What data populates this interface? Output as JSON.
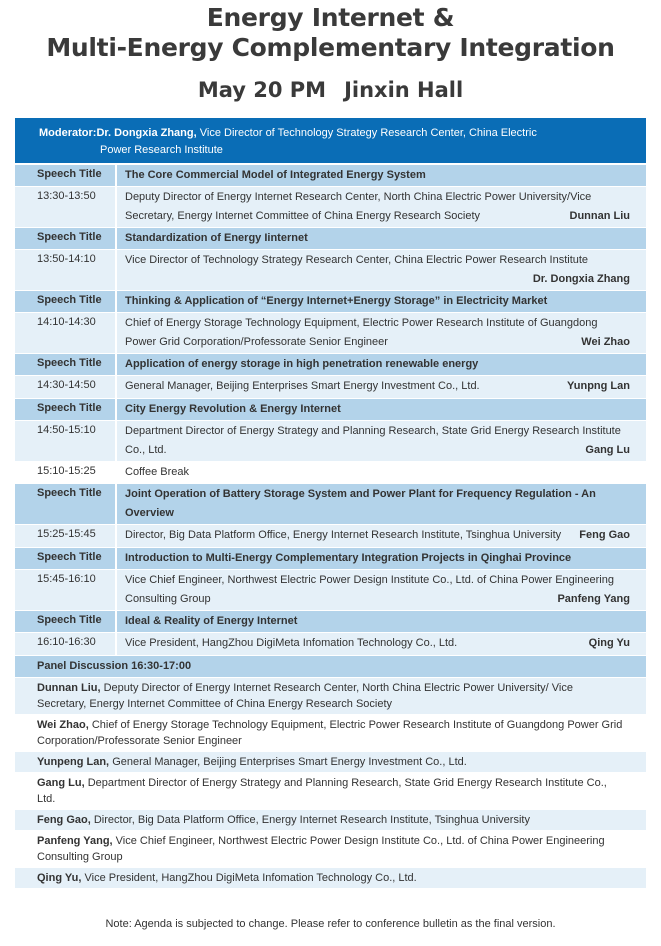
{
  "header": {
    "title_line1": "Energy Internet &",
    "title_line2": "Multi-Energy Complementary Integration",
    "date": "May 20 PM",
    "venue": "Jinxin Hall"
  },
  "moderator": {
    "label": "Moderator:Dr. Dongxia Zhang,",
    "desc_line1": "Vice Director of Technology Strategy Research Center, China Electric",
    "desc_line2": "Power Research Institute"
  },
  "colors": {
    "header_blue": "#0a6db6",
    "title_row": "#b3d3ea",
    "detail_row": "#e5f0f8"
  },
  "speech_label": "Speech Title",
  "agenda": [
    {
      "title": "The Core Commercial Model of Integrated Energy System",
      "time": "13:30-13:50",
      "desc": "Deputy Director of Energy Internet Research Center, North China Electric Power University/Vice Secretary, Energy Internet Committee of China Energy Research Society",
      "speaker": "Dunnan Liu"
    },
    {
      "title": "Standardization of Energy Iinternet",
      "time": "13:50-14:10",
      "desc": "Vice Director of Technology Strategy Research Center, China Electric Power Research Institute",
      "speaker": "Dr. Dongxia Zhang"
    },
    {
      "title": "Thinking & Application of  “Energy Internet+Energy Storage”  in Electricity Market",
      "time": "14:10-14:30",
      "desc": "Chief of Energy Storage Technology Equipment, Electric Power Research Institute of Guangdong Power Grid Corporation/Professorate Senior Engineer",
      "speaker": "Wei Zhao"
    },
    {
      "title": "Application of energy storage in high penetration renewable energy",
      "time": "14:30-14:50",
      "desc": "General Manager, Beijing Enterprises Smart Energy  Investment Co., Ltd.",
      "speaker": "Yunpng Lan"
    },
    {
      "title": "City Energy Revolution & Energy Internet",
      "time": "14:50-15:10",
      "desc": "Department Director of Energy Strategy and Planning Research, State Grid Energy Research Institute Co., Ltd.",
      "speaker": "Gang Lu"
    },
    {
      "break": true,
      "time": "15:10-15:25",
      "desc": "Coffee Break"
    },
    {
      "title": "Joint Operation of Battery Storage System and Power Plant for Frequency Regulation - An Overview",
      "time": "15:25-15:45",
      "desc": "Director, Big Data Platform Office, Energy Internet Research Institute, Tsinghua University",
      "speaker": "Feng Gao"
    },
    {
      "title": "Introduction to Multi-Energy Complementary Integration Projects in Qinghai Province",
      "time": "15:45-16:10",
      "desc": "Vice Chief Engineer, Northwest Electric Power Design Institute Co., Ltd. of China Power Engineering Consulting Group",
      "speaker": "Panfeng Yang"
    },
    {
      "title": "Ideal & Reality of Energy Internet",
      "time": "16:10-16:30",
      "desc": "Vice President, HangZhou DigiMeta Infomation Technology Co., Ltd.",
      "speaker": "Qing Yu"
    }
  ],
  "panel": {
    "heading": "Panel Discussion 16:30-17:00",
    "members": [
      {
        "name": "Dunnan Liu,",
        "desc": "Deputy Director of Energy Internet Research Center, North China Electric Power University/ Vice Secretary, Energy Internet Committee of China Energy Research Society"
      },
      {
        "name": "Wei Zhao,",
        "desc": "Chief of Energy Storage Technology Equipment, Electric Power Research Institute of Guangdong Power Grid Corporation/Professorate Senior Engineer"
      },
      {
        "name": "Yunpeng Lan,",
        "desc": "General Manager, Beijing Enterprises Smart Energy Investment Co., Ltd."
      },
      {
        "name": "Gang Lu,",
        "desc": "Department Director of Energy Strategy and Planning Research, State Grid Energy Research Institute Co., Ltd."
      },
      {
        "name": "Feng Gao,",
        "desc": "Director, Big Data Platform Office, Energy Internet Research Institute, Tsinghua University"
      },
      {
        "name": "Panfeng Yang,",
        "desc": "Vice Chief Engineer, Northwest Electric Power Design Institute Co., Ltd. of China Power Engineering Consulting Group"
      },
      {
        "name": "Qing Yu,",
        "desc": "Vice President, HangZhou DigiMeta Infomation Technology Co., Ltd."
      }
    ]
  },
  "note": "Note: Agenda is subjected to change. Please refer to conference bulletin as the final version."
}
